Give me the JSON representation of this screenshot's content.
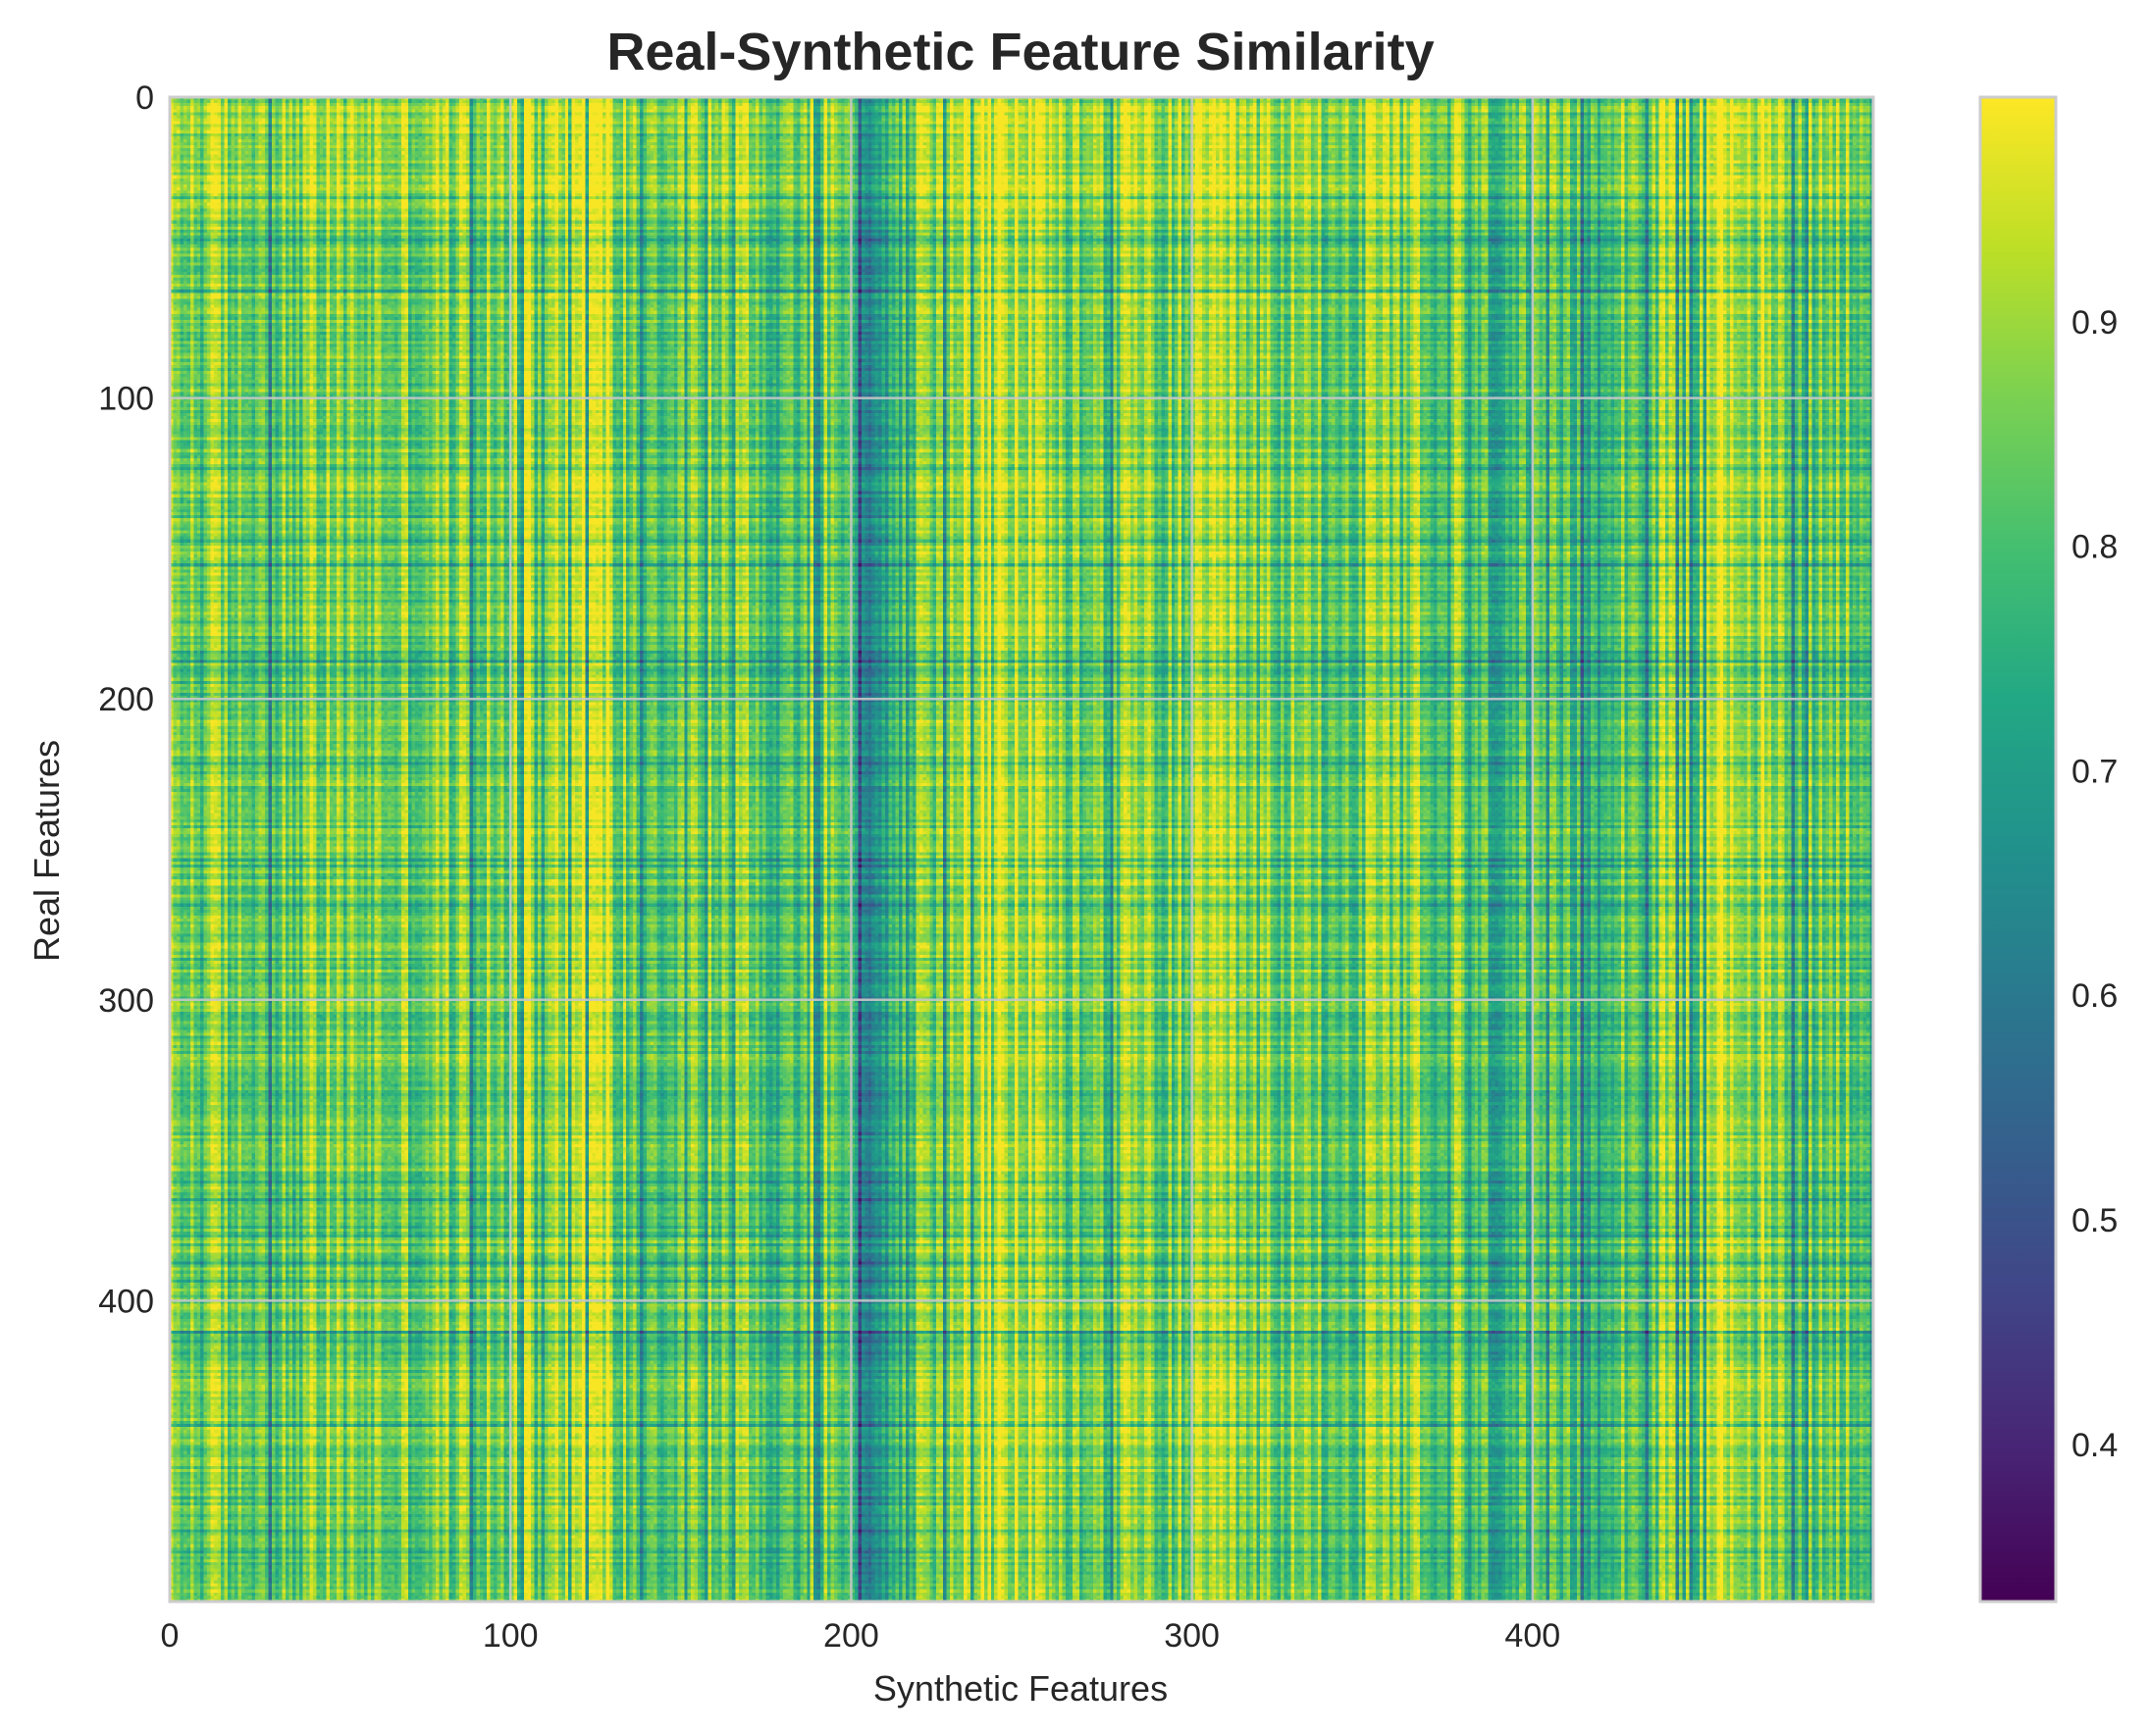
{
  "chart_data": {
    "type": "heatmap",
    "title": "Real-Synthetic Feature Similarity",
    "xlabel": "Synthetic Features",
    "ylabel": "Real Features",
    "x_range": [
      0,
      500
    ],
    "y_range": [
      0,
      500
    ],
    "y_inverted": true,
    "x_ticks": [
      0,
      100,
      200,
      300,
      400
    ],
    "x_tick_labels": [
      "0",
      "100",
      "200",
      "300",
      "400"
    ],
    "y_ticks": [
      0,
      100,
      200,
      300,
      400
    ],
    "y_tick_labels": [
      "0",
      "100",
      "200",
      "300",
      "400"
    ],
    "grid": true,
    "colormap": "viridis",
    "value_range": [
      0.33,
      1.0
    ],
    "colorbar": {
      "ticks": [
        0.4,
        0.5,
        0.6,
        0.7,
        0.8,
        0.9
      ],
      "tick_labels": [
        "0.4",
        "0.5",
        "0.6",
        "0.7",
        "0.8",
        "0.9"
      ]
    },
    "column_similarity_profile": [
      {
        "x": [
          0,
          100
        ],
        "value": 0.86
      },
      {
        "x": [
          100,
          130
        ],
        "value": 0.94
      },
      {
        "x": [
          130,
          200
        ],
        "value": 0.86
      },
      {
        "x": [
          200,
          215
        ],
        "value": 0.74
      },
      {
        "x": [
          230,
          260
        ],
        "value": 0.93
      },
      {
        "x": [
          300,
          320
        ],
        "value": 0.87
      },
      {
        "x": [
          380,
          420
        ],
        "value": 0.78
      },
      {
        "x": [
          450,
          470
        ],
        "value": 0.94
      }
    ],
    "row_similarity_profile": [
      {
        "y": [
          0,
          40
        ],
        "value": 0.9
      },
      {
        "y": [
          180,
          200
        ],
        "value": 0.82
      },
      {
        "y": [
          360,
          380
        ],
        "value": 0.82
      },
      {
        "y": [
          410,
          420
        ],
        "value": 0.8
      },
      {
        "y": [
          460,
          470
        ],
        "value": 0.84
      }
    ]
  },
  "colors": {
    "frame": "#cccccc",
    "grid": "#c8c8c8",
    "text": "#262626"
  }
}
